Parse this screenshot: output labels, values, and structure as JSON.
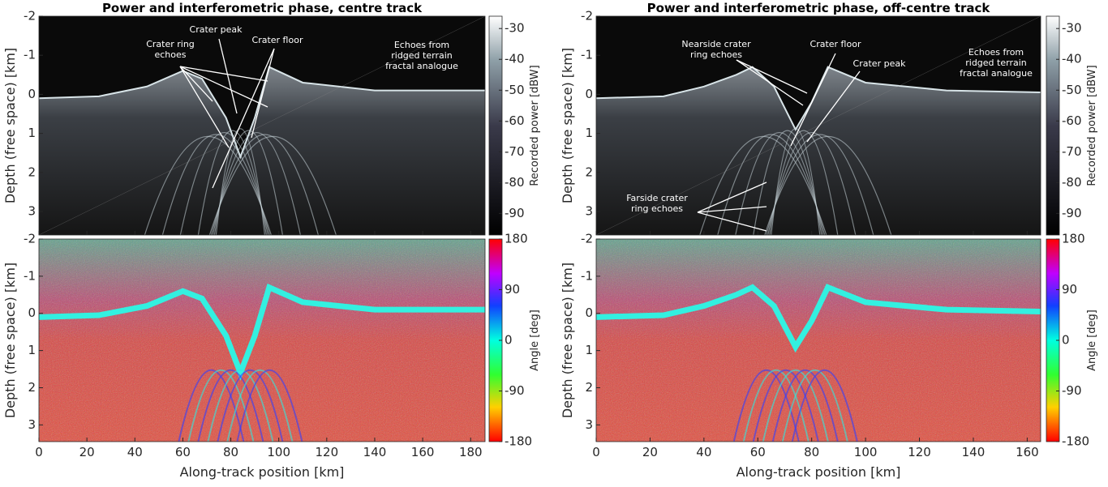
{
  "chart_data": [
    {
      "type": "radargram",
      "title": "Power and interferometric phase, centre track",
      "ylabel": "Depth (free space) [km]",
      "xlim": [
        0,
        186
      ],
      "xticks": [
        0,
        20,
        40,
        60,
        80,
        100,
        120,
        140,
        160,
        180
      ],
      "ylim": [
        -2,
        3.6
      ],
      "yticks": [
        -2,
        -1,
        0,
        1,
        2,
        3
      ],
      "colorbar": {
        "label": "Recorded power [dBW]",
        "lim": [
          -97,
          -26
        ],
        "ticks": [
          -30,
          -40,
          -50,
          -60,
          -70,
          -80,
          -90
        ],
        "colormap": "gray"
      },
      "annotations": [
        {
          "lines": [
            "Crater ring",
            "echoes"
          ]
        },
        {
          "lines": [
            "Crater peak"
          ]
        },
        {
          "lines": [
            "Crater floor"
          ]
        },
        {
          "lines": [
            "Echoes from",
            "ridged terrain",
            "fractal analogue"
          ]
        }
      ]
    },
    {
      "type": "phase",
      "ylabel": "Depth (free space) [km]",
      "xlabel": "Along-track position [km]",
      "xlim": [
        0,
        186
      ],
      "xticks": [
        0,
        20,
        40,
        60,
        80,
        100,
        120,
        140,
        160,
        180
      ],
      "ylim": [
        -2,
        3.45
      ],
      "yticks": [
        -2,
        -1,
        0,
        1,
        2,
        3
      ],
      "colorbar": {
        "label": "Angle [deg]",
        "lim": [
          -180,
          180
        ],
        "ticks": [
          180,
          90,
          0,
          -90,
          -180
        ],
        "colormap": "hsv"
      }
    },
    {
      "type": "radargram",
      "title": "Power and interferometric phase, off-centre track",
      "ylabel": "Depth (free space) [km]",
      "xlim": [
        0,
        165
      ],
      "xticks": [
        0,
        20,
        40,
        60,
        80,
        100,
        120,
        140,
        160
      ],
      "ylim": [
        -2,
        3.6
      ],
      "yticks": [
        -2,
        -1,
        0,
        1,
        2,
        3
      ],
      "colorbar": {
        "label": "Recorded power [dBW]",
        "lim": [
          -97,
          -26
        ],
        "ticks": [
          -30,
          -40,
          -50,
          -60,
          -70,
          -80,
          -90
        ],
        "colormap": "gray"
      },
      "annotations": [
        {
          "lines": [
            "Nearside crater",
            "ring echoes"
          ]
        },
        {
          "lines": [
            "Crater floor"
          ]
        },
        {
          "lines": [
            "Crater peak"
          ]
        },
        {
          "lines": [
            "Echoes from",
            "ridged terrain",
            "fractal analogue"
          ]
        },
        {
          "lines": [
            "Farside crater",
            "ring echoes"
          ]
        }
      ]
    },
    {
      "type": "phase",
      "ylabel": "Depth (free space) [km]",
      "xlabel": "Along-track position [km]",
      "xlim": [
        0,
        165
      ],
      "xticks": [
        0,
        20,
        40,
        60,
        80,
        100,
        120,
        140,
        160
      ],
      "ylim": [
        -2,
        3.45
      ],
      "yticks": [
        -2,
        -1,
        0,
        1,
        2,
        3
      ],
      "colorbar": {
        "label": "Angle [deg]",
        "lim": [
          -180,
          180
        ],
        "ticks": [
          180,
          90,
          0,
          -90,
          -180
        ],
        "colormap": "hsv"
      }
    }
  ]
}
